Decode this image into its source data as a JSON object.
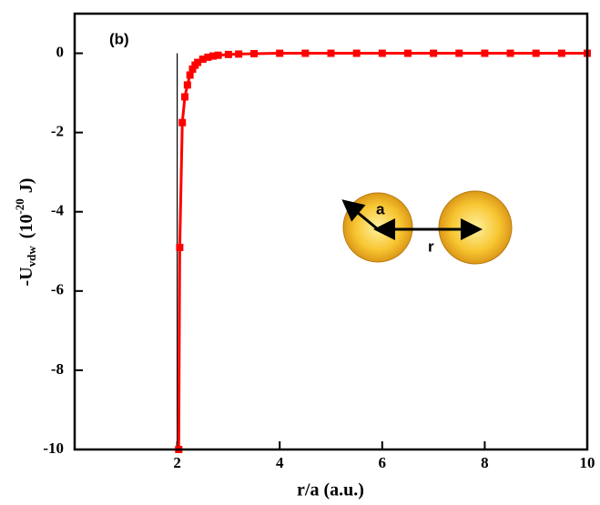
{
  "chart_data": {
    "type": "line",
    "panel_label": "(b)",
    "xlabel": "r/a  (a.u.)",
    "ylabel": [
      "-U",
      "vdw",
      "(10",
      "-20",
      "J)"
    ],
    "inset_labels": [
      "a",
      "r"
    ],
    "x": [
      2.03,
      2.05,
      2.1,
      2.15,
      2.2,
      2.25,
      2.3,
      2.35,
      2.4,
      2.5,
      2.6,
      2.7,
      2.8,
      3.0,
      3.2,
      3.5,
      4.0,
      4.5,
      5.0,
      5.5,
      6.0,
      6.5,
      7.0,
      7.5,
      8.0,
      8.5,
      9.0,
      9.5,
      10.0
    ],
    "series": [
      {
        "color": "#ff0000",
        "values": [
          -10,
          -4.9,
          -1.75,
          -1.1,
          -0.8,
          -0.55,
          -0.4,
          -0.3,
          -0.23,
          -0.15,
          -0.1,
          -0.07,
          -0.05,
          -0.03,
          -0.02,
          -0.01,
          0,
          0,
          0,
          0,
          0,
          0,
          0,
          0,
          0,
          0,
          0,
          0,
          0
        ]
      }
    ],
    "xlim": [
      0,
      10
    ],
    "ylim": [
      -10,
      1
    ],
    "xticks": [
      2,
      4,
      6,
      8,
      10
    ],
    "yticks": [
      0,
      -2,
      -4,
      -6,
      -8,
      -10
    ],
    "vline_x": 2,
    "grid": false
  }
}
